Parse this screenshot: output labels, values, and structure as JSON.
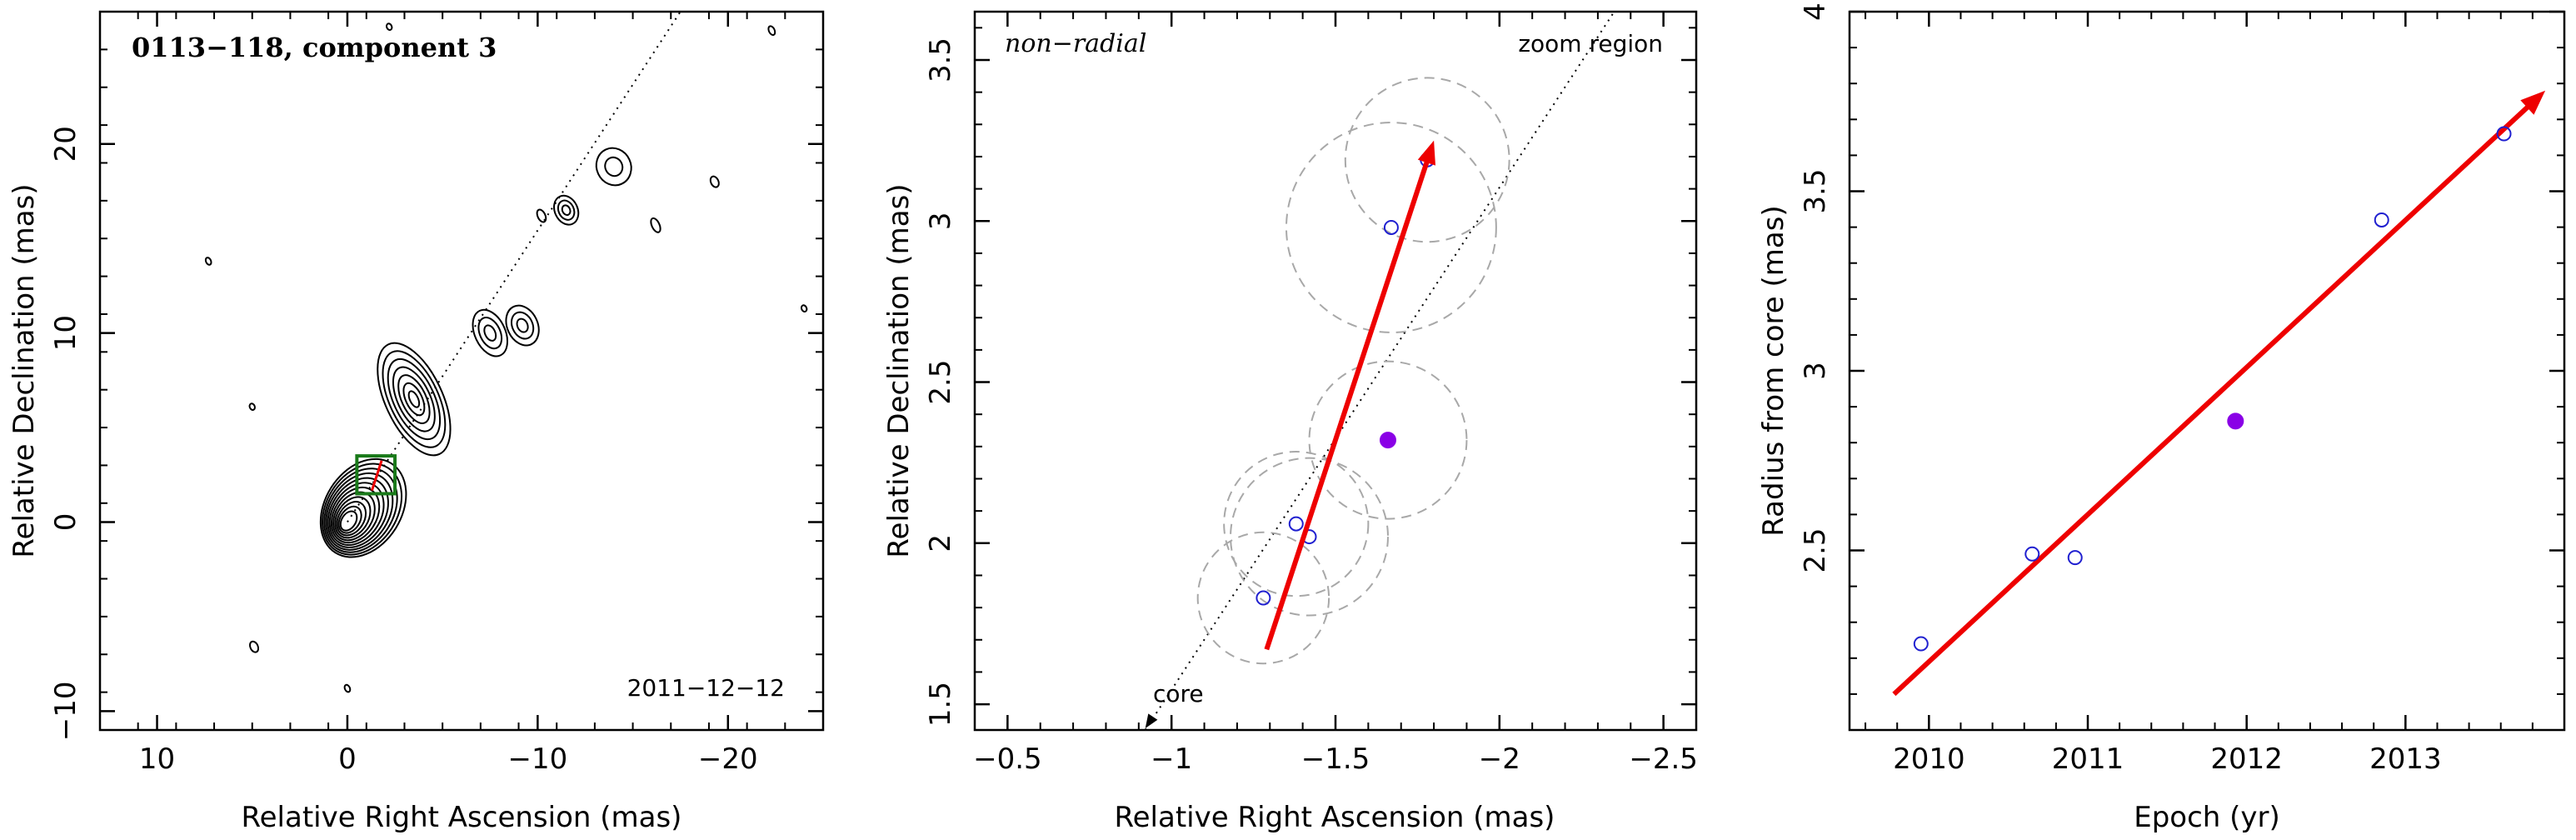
{
  "chart_data": [
    {
      "type": "contour",
      "title": "0113−118, component 3",
      "epoch_label": "2011−12−12",
      "xlabel": "Relative Right Ascension (mas)",
      "ylabel": "Relative Declination (mas)",
      "xlim": [
        13,
        -25
      ],
      "ylim": [
        -11,
        27
      ],
      "x_ticks": [
        10,
        0,
        -10,
        -20
      ],
      "x_tick_labels": [
        "10",
        "0",
        "−10",
        "−20"
      ],
      "y_ticks": [
        -10,
        0,
        10,
        20
      ],
      "y_tick_labels": [
        "−10",
        "0",
        "10",
        "20"
      ],
      "core": [
        0,
        0
      ],
      "zoom_box": {
        "x": [
          -0.5,
          -2.5
        ],
        "y": [
          1.5,
          3.5
        ],
        "color": "#1a7a1a"
      },
      "direction_line": {
        "from": [
          0,
          0
        ],
        "to": [
          -17.5,
          27
        ]
      },
      "jet_components": [
        {
          "x": -3.5,
          "y": 6.5,
          "sx": 1.5,
          "sy": 3.2,
          "levels": 7
        },
        {
          "x": -7.5,
          "y": 10.0,
          "sx": 0.8,
          "sy": 1.3,
          "levels": 3
        },
        {
          "x": -9.2,
          "y": 10.4,
          "sx": 0.8,
          "sy": 1.1,
          "levels": 3
        },
        {
          "x": -11.5,
          "y": 16.5,
          "sx": 0.6,
          "sy": 0.8,
          "levels": 3
        },
        {
          "x": -14.0,
          "y": 18.8,
          "sx": 0.9,
          "sy": 1.0,
          "levels": 2
        },
        {
          "x": -10.2,
          "y": 16.2,
          "sx": 0.2,
          "sy": 0.35,
          "levels": 1
        },
        {
          "x": -16.2,
          "y": 15.7,
          "sx": 0.2,
          "sy": 0.4,
          "levels": 1
        },
        {
          "x": -19.3,
          "y": 18.0,
          "sx": 0.2,
          "sy": 0.3,
          "levels": 1
        },
        {
          "x": 4.9,
          "y": -6.6,
          "sx": 0.2,
          "sy": 0.3,
          "levels": 1
        },
        {
          "x": 7.3,
          "y": 13.8,
          "sx": 0.12,
          "sy": 0.2,
          "levels": 1
        },
        {
          "x": -22.3,
          "y": 26.0,
          "sx": 0.15,
          "sy": 0.25,
          "levels": 1
        },
        {
          "x": -24.0,
          "y": 11.3,
          "sx": 0.1,
          "sy": 0.15,
          "levels": 1
        },
        {
          "x": 0.0,
          "y": -8.8,
          "sx": 0.1,
          "sy": 0.2,
          "levels": 1
        },
        {
          "x": 5.0,
          "y": 6.1,
          "sx": 0.08,
          "sy": 0.12,
          "levels": 1
        },
        {
          "x": -2.2,
          "y": 26.2,
          "sx": 0.1,
          "sy": 0.15,
          "levels": 1
        }
      ]
    },
    {
      "type": "scatter",
      "label": "non−radial",
      "zoom_label": "zoom region",
      "core_label": "core",
      "xlabel": "Relative Right Ascension (mas)",
      "ylabel": "Relative Declination (mas)",
      "xlim": [
        -0.4,
        -2.6
      ],
      "ylim": [
        1.42,
        3.65
      ],
      "x_ticks": [
        -0.5,
        -1,
        -1.5,
        -2,
        -2.5
      ],
      "x_tick_labels": [
        "−0.5",
        "−1",
        "−1.5",
        "−2",
        "−2.5"
      ],
      "y_ticks": [
        1.5,
        2,
        2.5,
        3,
        3.5
      ],
      "y_tick_labels": [
        "1.5",
        "2",
        "2.5",
        "3",
        "3.5"
      ],
      "points": [
        {
          "x": -1.28,
          "y": 1.83,
          "filled": false,
          "r": 0.2
        },
        {
          "x": -1.38,
          "y": 2.06,
          "filled": false,
          "r": 0.22
        },
        {
          "x": -1.42,
          "y": 2.02,
          "filled": false,
          "r": 0.24
        },
        {
          "x": -1.66,
          "y": 2.32,
          "filled": true,
          "r": 0.24
        },
        {
          "x": -1.67,
          "y": 2.98,
          "filled": false,
          "r": 0.32
        },
        {
          "x": -1.78,
          "y": 3.19,
          "filled": false,
          "r": 0.25
        }
      ],
      "arrow": {
        "from": [
          -1.29,
          1.67
        ],
        "to": [
          -1.8,
          3.25
        ],
        "color": "#ee0000"
      },
      "direction_line": {
        "from": [
          -0.92,
          1.42
        ],
        "to": [
          -2.35,
          3.65
        ]
      }
    },
    {
      "type": "scatter",
      "xlabel": "Epoch (yr)",
      "ylabel": "Radius from core (mas)",
      "xlim": [
        2009.5,
        2014.0
      ],
      "ylim": [
        2.0,
        4.0
      ],
      "x_ticks": [
        2010,
        2011,
        2012,
        2013
      ],
      "x_tick_labels": [
        "2010",
        "2011",
        "2012",
        "2013"
      ],
      "y_ticks": [
        2.5,
        3,
        3.5,
        4
      ],
      "y_tick_labels": [
        "2.5",
        "3",
        "3.5",
        "4"
      ],
      "points": [
        {
          "x": 2009.95,
          "y": 2.24,
          "filled": false
        },
        {
          "x": 2010.65,
          "y": 2.49,
          "filled": false
        },
        {
          "x": 2010.92,
          "y": 2.48,
          "filled": false
        },
        {
          "x": 2011.93,
          "y": 2.86,
          "filled": true
        },
        {
          "x": 2012.85,
          "y": 3.42,
          "filled": false
        },
        {
          "x": 2013.62,
          "y": 3.66,
          "filled": false
        }
      ],
      "fit_arrow": {
        "from": [
          2009.78,
          2.1
        ],
        "to": [
          2013.88,
          3.78
        ],
        "color": "#ee0000"
      }
    }
  ],
  "colors": {
    "open_marker": "#2020d0",
    "filled_marker": "#8a00e6",
    "circle": "#a8a8a8",
    "arrow": "#ee0000"
  }
}
